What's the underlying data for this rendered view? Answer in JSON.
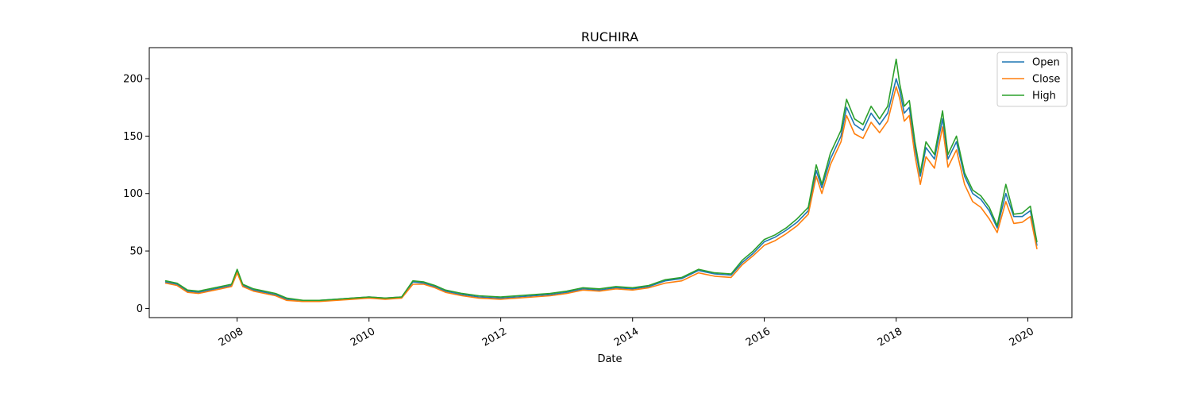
{
  "chart_data": {
    "type": "line",
    "title": "RUCHIRA",
    "xlabel": "Date",
    "ylabel": "",
    "xlim": [
      "2006-09-01",
      "2020-09-01"
    ],
    "ylim": [
      -8,
      227
    ],
    "x_ticks": [
      "2008",
      "2010",
      "2012",
      "2014",
      "2016",
      "2018",
      "2020"
    ],
    "y_ticks": [
      0,
      50,
      100,
      150,
      200
    ],
    "grid": false,
    "legend_position": "top-right",
    "colors": {
      "Open": "#1f77b4",
      "Close": "#ff7f0e",
      "High": "#2ca02c"
    },
    "x": [
      "2006-12-01",
      "2007-02-01",
      "2007-04-01",
      "2007-06-01",
      "2007-08-01",
      "2007-10-01",
      "2007-12-01",
      "2008-01-01",
      "2008-02-01",
      "2008-04-01",
      "2008-06-01",
      "2008-08-01",
      "2008-10-01",
      "2009-01-01",
      "2009-04-01",
      "2009-07-01",
      "2009-10-01",
      "2010-01-01",
      "2010-04-01",
      "2010-07-01",
      "2010-09-01",
      "2010-11-01",
      "2011-01-01",
      "2011-03-01",
      "2011-06-01",
      "2011-09-01",
      "2012-01-01",
      "2012-04-01",
      "2012-07-01",
      "2012-10-01",
      "2013-01-01",
      "2013-04-01",
      "2013-07-01",
      "2013-10-01",
      "2014-01-01",
      "2014-04-01",
      "2014-07-01",
      "2014-10-01",
      "2015-01-01",
      "2015-04-01",
      "2015-07-01",
      "2015-09-01",
      "2015-11-01",
      "2016-01-01",
      "2016-03-01",
      "2016-05-01",
      "2016-07-01",
      "2016-09-01",
      "2016-10-15",
      "2016-11-15",
      "2017-01-01",
      "2017-03-01",
      "2017-04-01",
      "2017-05-15",
      "2017-07-01",
      "2017-08-15",
      "2017-10-01",
      "2017-11-15",
      "2018-01-01",
      "2018-01-20",
      "2018-02-15",
      "2018-03-15",
      "2018-04-15",
      "2018-05-15",
      "2018-06-15",
      "2018-08-01",
      "2018-09-15",
      "2018-10-15",
      "2018-12-01",
      "2019-01-15",
      "2019-03-01",
      "2019-04-15",
      "2019-06-01",
      "2019-07-15",
      "2019-09-01",
      "2019-10-15",
      "2019-12-01",
      "2020-01-15",
      "2020-02-20"
    ],
    "series": [
      {
        "name": "Open",
        "values": [
          23,
          21,
          15,
          14,
          16,
          18,
          20,
          33,
          20,
          16,
          14,
          12,
          8,
          6,
          7,
          8,
          9,
          10,
          9,
          10,
          23,
          22,
          19,
          15,
          12,
          10,
          9,
          10,
          11,
          12,
          14,
          17,
          16,
          18,
          17,
          19,
          24,
          26,
          33,
          30,
          29,
          40,
          48,
          58,
          62,
          68,
          75,
          85,
          120,
          105,
          130,
          150,
          175,
          160,
          155,
          170,
          160,
          170,
          200,
          190,
          170,
          175,
          140,
          115,
          140,
          130,
          165,
          130,
          145,
          115,
          100,
          95,
          85,
          70,
          100,
          80,
          80,
          85,
          55
        ]
      },
      {
        "name": "Close",
        "values": [
          22,
          20,
          14,
          13,
          15,
          17,
          19,
          31,
          19,
          15,
          13,
          11,
          7,
          6,
          6,
          7,
          8,
          9,
          8,
          9,
          21,
          21,
          18,
          14,
          11,
          9,
          8,
          9,
          10,
          11,
          13,
          16,
          15,
          17,
          16,
          18,
          22,
          24,
          31,
          28,
          27,
          38,
          46,
          55,
          59,
          65,
          72,
          82,
          115,
          100,
          125,
          145,
          168,
          152,
          148,
          162,
          153,
          163,
          193,
          183,
          163,
          168,
          133,
          108,
          132,
          122,
          158,
          123,
          138,
          108,
          93,
          88,
          78,
          66,
          93,
          74,
          75,
          80,
          52
        ]
      },
      {
        "name": "High",
        "values": [
          24,
          22,
          16,
          15,
          17,
          19,
          21,
          34,
          21,
          17,
          15,
          13,
          9,
          7,
          7,
          8,
          9,
          10,
          9,
          10,
          24,
          23,
          20,
          16,
          13,
          11,
          10,
          11,
          12,
          13,
          15,
          18,
          17,
          19,
          18,
          20,
          25,
          27,
          34,
          31,
          30,
          42,
          50,
          60,
          64,
          70,
          78,
          88,
          125,
          108,
          135,
          155,
          182,
          165,
          160,
          176,
          165,
          176,
          217,
          196,
          176,
          181,
          145,
          118,
          145,
          134,
          172,
          134,
          150,
          118,
          103,
          98,
          88,
          72,
          108,
          82,
          83,
          89,
          58
        ]
      }
    ]
  }
}
